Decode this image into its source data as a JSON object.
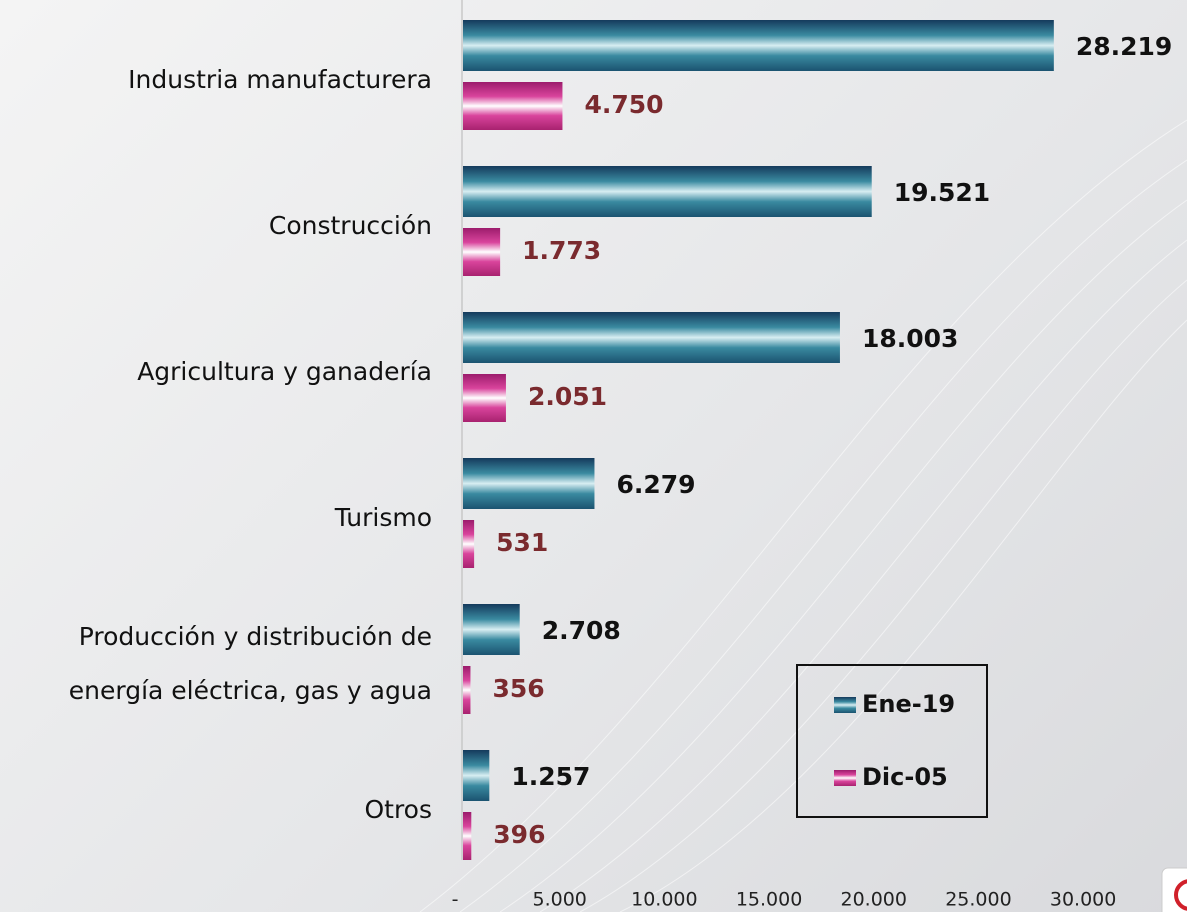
{
  "chart_data": {
    "type": "bar",
    "orientation": "horizontal",
    "categories": [
      "Industria manufacturera",
      "Construcción",
      "Agricultura y ganadería",
      "Turismo",
      "Producción y distribución de energía eléctrica, gas y agua",
      "Otros"
    ],
    "series": [
      {
        "name": "Ene-19",
        "color": "#22637f",
        "values": [
          28219,
          19521,
          18003,
          6279,
          2708,
          1257
        ],
        "value_labels": [
          "28.219",
          "19.521",
          "18.003",
          "6.279",
          "2.708",
          "1.257"
        ]
      },
      {
        "name": "Dic-05",
        "color": "#c2308a",
        "values": [
          4750,
          1773,
          2051,
          531,
          356,
          396
        ],
        "value_labels": [
          "4.750",
          "1.773",
          "2.051",
          "531",
          "356",
          "396"
        ]
      }
    ],
    "xlim": [
      0,
      32000
    ],
    "xticks": [
      {
        "value": 0,
        "label": "-"
      },
      {
        "value": 5000,
        "label": "5.000"
      },
      {
        "value": 10000,
        "label": "10.000"
      },
      {
        "value": 15000,
        "label": "15.000"
      },
      {
        "value": 20000,
        "label": "20.000"
      },
      {
        "value": 25000,
        "label": "25.000"
      },
      {
        "value": 30000,
        "label": "30.000"
      }
    ],
    "legend": "lower-right"
  }
}
